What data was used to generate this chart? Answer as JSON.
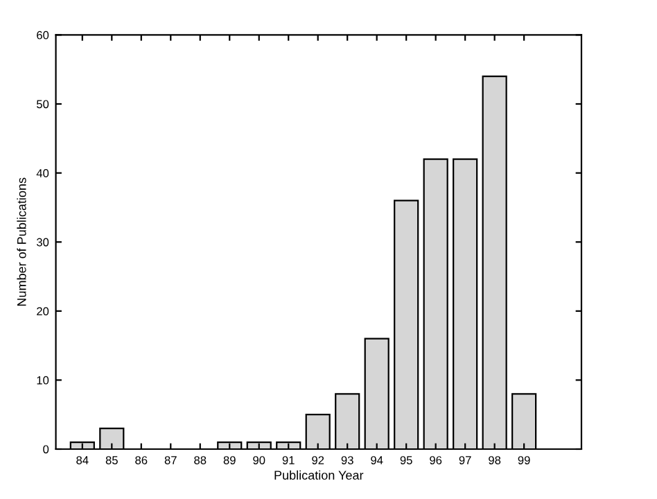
{
  "chart_data": {
    "type": "bar",
    "xlabel": "Publication Year",
    "ylabel": "Number of Publications",
    "categories": [
      "84",
      "85",
      "86",
      "87",
      "88",
      "89",
      "90",
      "91",
      "92",
      "93",
      "94",
      "95",
      "96",
      "97",
      "98",
      "99"
    ],
    "values": [
      1,
      3,
      0,
      0,
      0,
      1,
      1,
      1,
      5,
      8,
      16,
      36,
      42,
      42,
      54,
      8
    ],
    "color": "#d6d6d6",
    "ylim": [
      0,
      60
    ],
    "yticks": [
      0,
      10,
      20,
      30,
      40,
      50,
      60
    ],
    "grid": false
  }
}
